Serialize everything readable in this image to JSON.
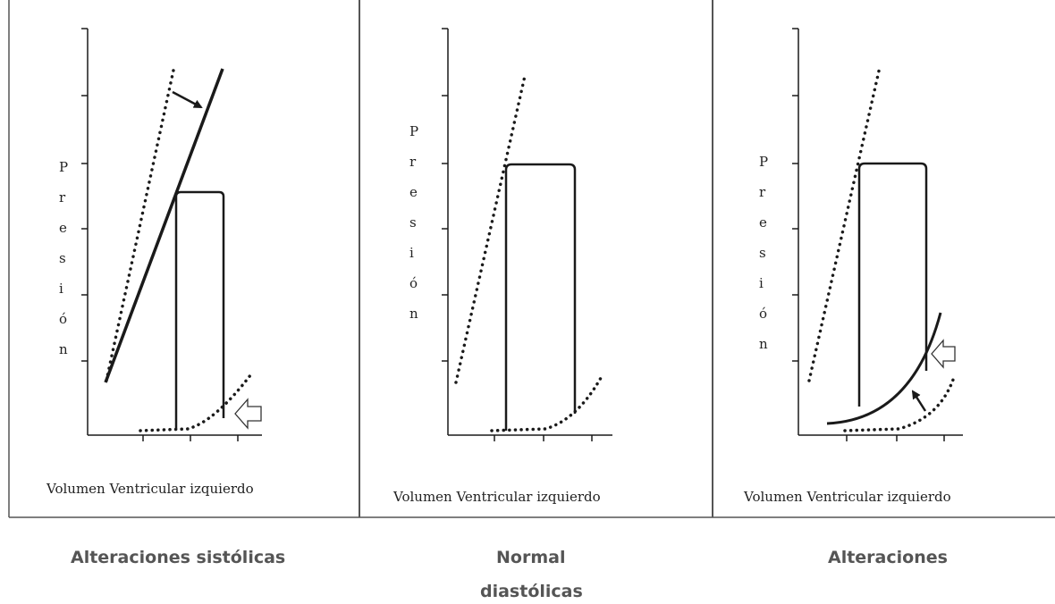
{
  "panels": [
    {
      "id": "systolic",
      "y_axis_label": "Presión",
      "x_axis_label": "Volumen Ventricular izquierdo"
    },
    {
      "id": "normal",
      "y_axis_label": "Presión",
      "x_axis_label": "Volumen Ventricular izquierdo"
    },
    {
      "id": "diastolic",
      "y_axis_label": "Presión",
      "x_axis_label": "Volumen Ventricular izquierdo"
    }
  ],
  "captions": {
    "systolic": "Alteraciones sistólicas",
    "normal": "Normal",
    "diastolic_line1": "Alteraciones",
    "diastolic_line2": "diastólicas"
  },
  "colors": {
    "line": "#1a1a1a",
    "frame": "#555555",
    "caption": "#555555"
  },
  "icons": [
    "straight-arrow-icon",
    "hollow-arrow-icon"
  ]
}
